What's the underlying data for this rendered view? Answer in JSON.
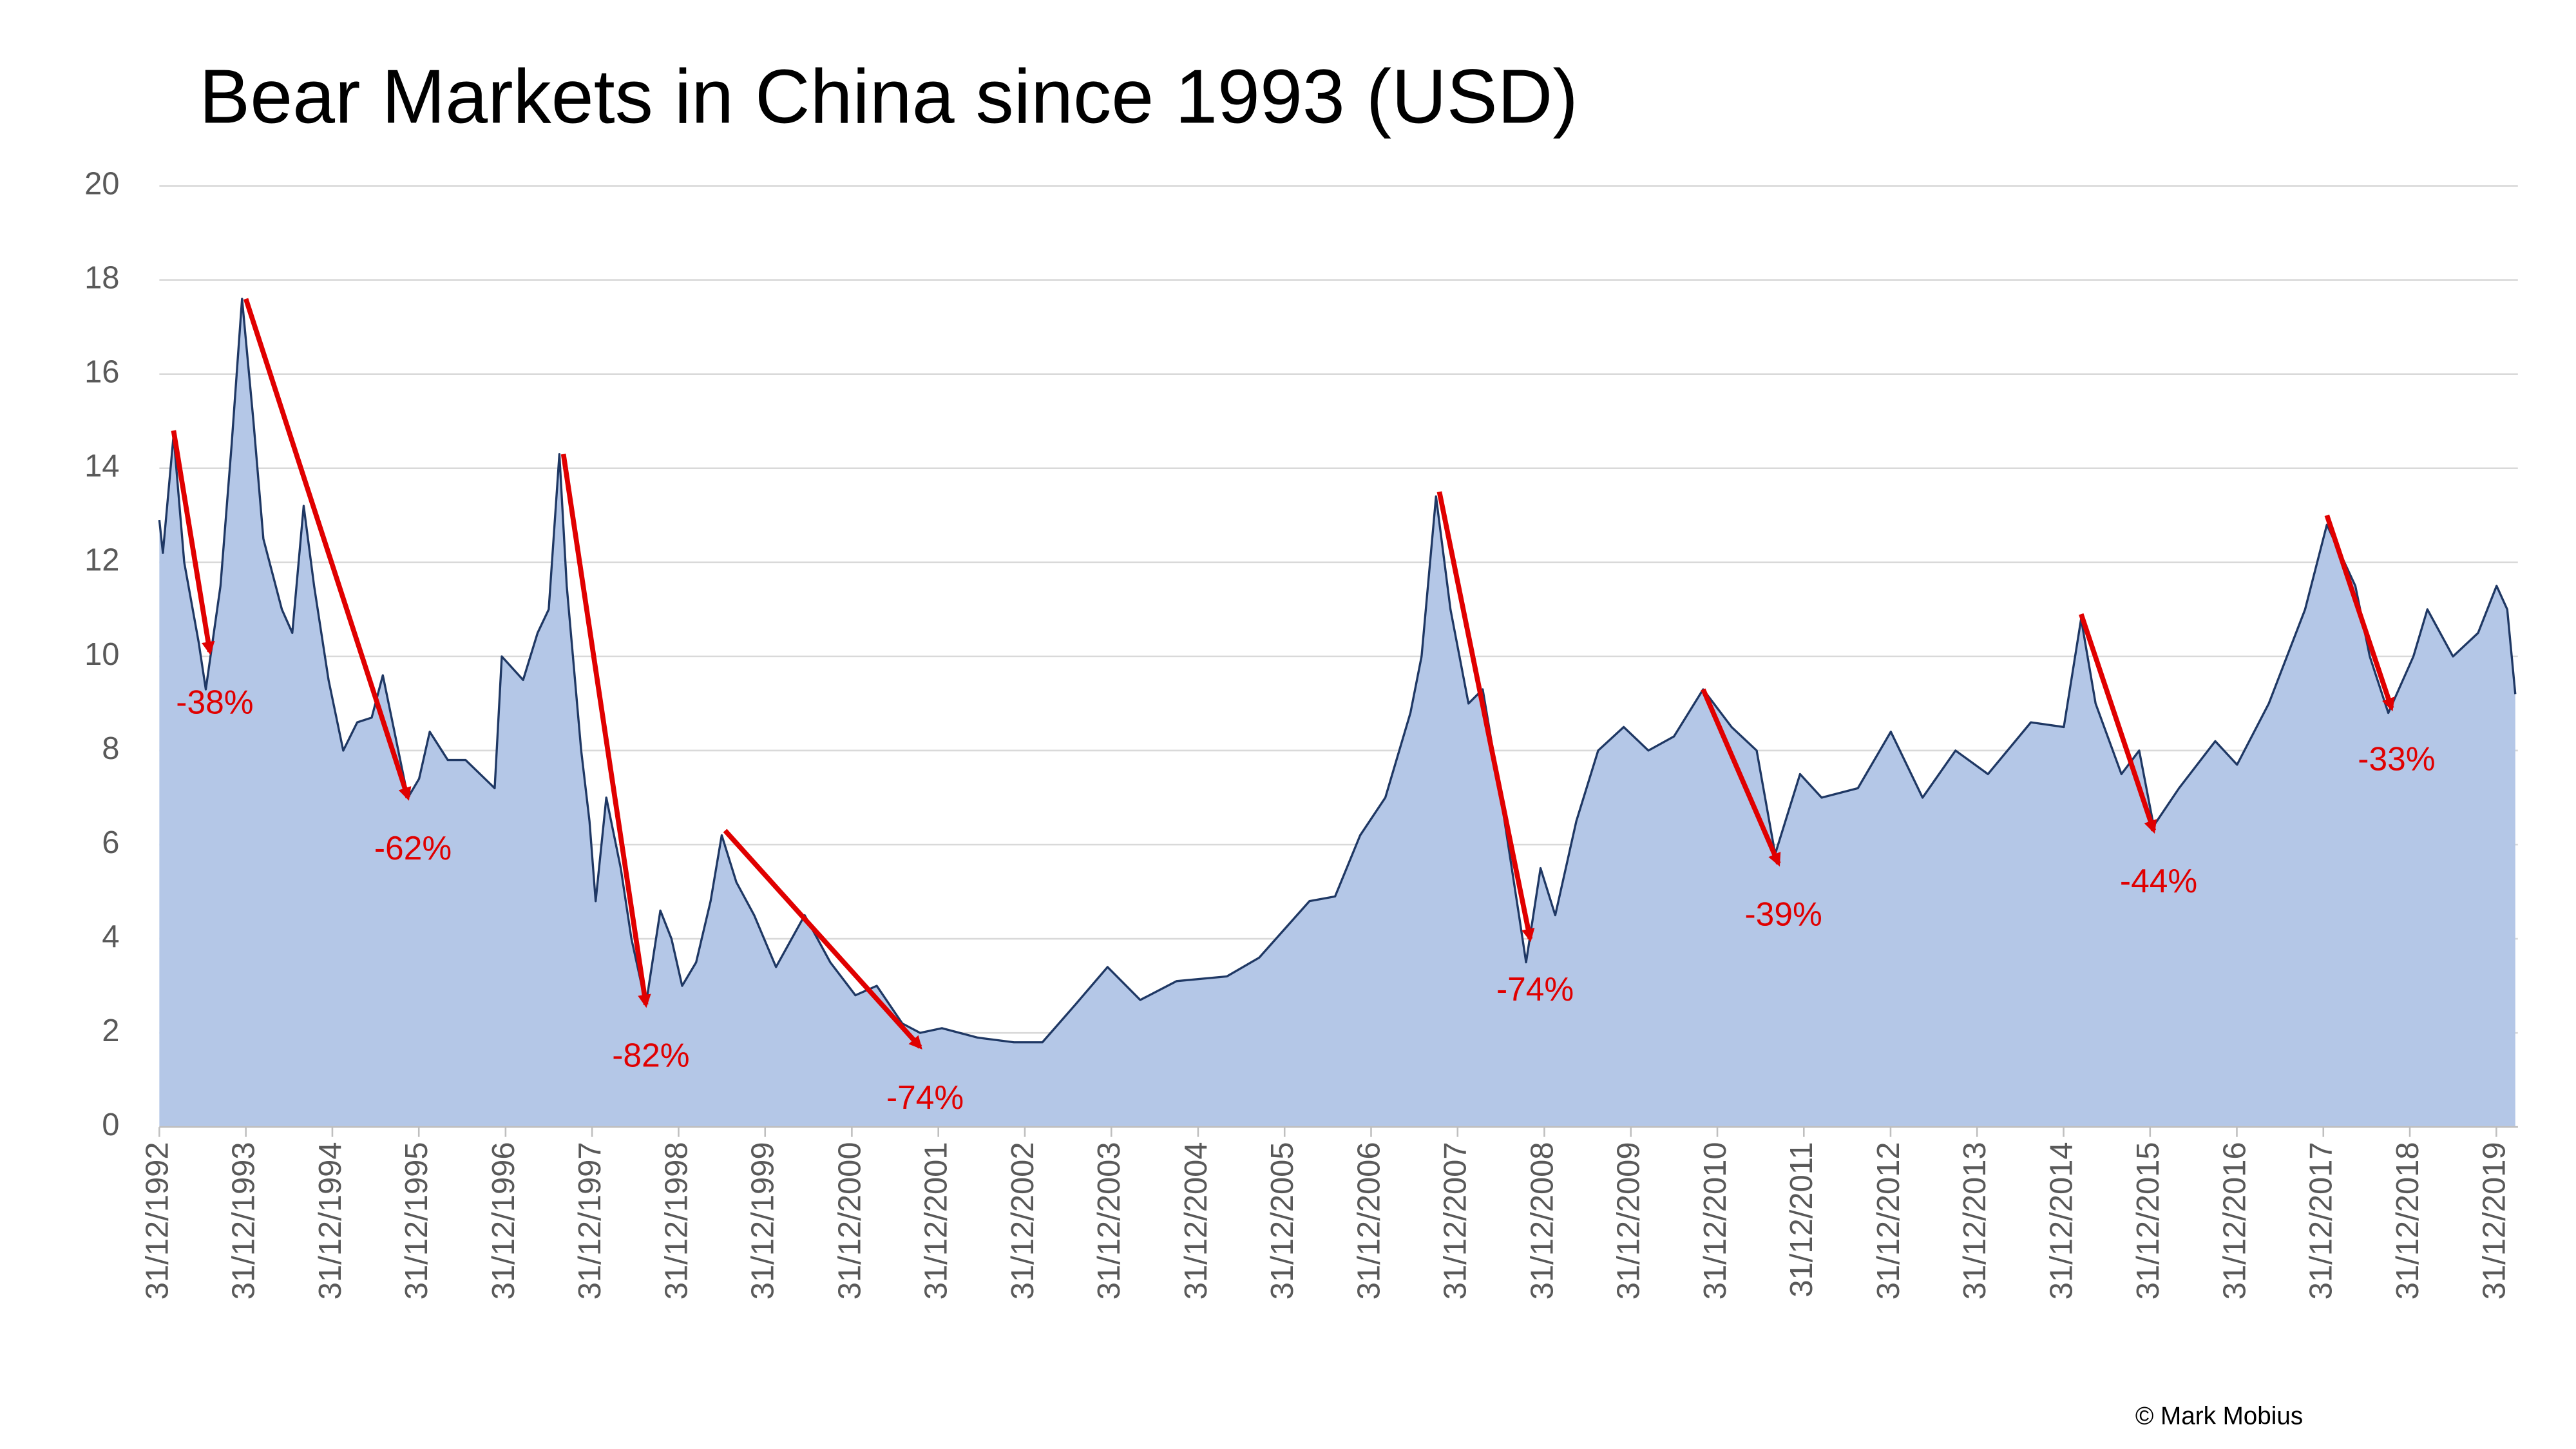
{
  "chart_data": {
    "type": "area",
    "title": "Bear Markets in China since 1993 (USD)",
    "credit": "© Mark Mobius",
    "xlim": [
      "1992-12-31",
      "2020-03-31"
    ],
    "xticks": [
      {
        "value": "1992-12-31",
        "label": "31/12/1992"
      },
      {
        "value": "1993-12-31",
        "label": "31/12/1993"
      },
      {
        "value": "1994-12-31",
        "label": "31/12/1994"
      },
      {
        "value": "1995-12-31",
        "label": "31/12/1995"
      },
      {
        "value": "1996-12-31",
        "label": "31/12/1996"
      },
      {
        "value": "1997-12-31",
        "label": "31/12/1997"
      },
      {
        "value": "1998-12-31",
        "label": "31/12/1998"
      },
      {
        "value": "1999-12-31",
        "label": "31/12/1999"
      },
      {
        "value": "2000-12-31",
        "label": "31/12/2000"
      },
      {
        "value": "2001-12-31",
        "label": "31/12/2001"
      },
      {
        "value": "2002-12-31",
        "label": "31/12/2002"
      },
      {
        "value": "2003-12-31",
        "label": "31/12/2003"
      },
      {
        "value": "2004-12-31",
        "label": "31/12/2004"
      },
      {
        "value": "2005-12-31",
        "label": "31/12/2005"
      },
      {
        "value": "2006-12-31",
        "label": "31/12/2006"
      },
      {
        "value": "2007-12-31",
        "label": "31/12/2007"
      },
      {
        "value": "2008-12-31",
        "label": "31/12/2008"
      },
      {
        "value": "2009-12-31",
        "label": "31/12/2009"
      },
      {
        "value": "2010-12-31",
        "label": "31/12/2010"
      },
      {
        "value": "2011-12-31",
        "label": "31/12/2011"
      },
      {
        "value": "2012-12-31",
        "label": "31/12/2012"
      },
      {
        "value": "2013-12-31",
        "label": "31/12/2013"
      },
      {
        "value": "2014-12-31",
        "label": "31/12/2014"
      },
      {
        "value": "2015-12-31",
        "label": "31/12/2015"
      },
      {
        "value": "2016-12-31",
        "label": "31/12/2016"
      },
      {
        "value": "2017-12-31",
        "label": "31/12/2017"
      },
      {
        "value": "2018-12-31",
        "label": "31/12/2018"
      },
      {
        "value": "2019-12-31",
        "label": "31/12/2019"
      }
    ],
    "ylim": [
      0,
      20
    ],
    "yticks": [
      0,
      2,
      4,
      6,
      8,
      10,
      12,
      14,
      16,
      18,
      20
    ],
    "grid": true,
    "x": [
      "1992-12-31",
      "1993-01-15",
      "1993-03-01",
      "1993-04-15",
      "1993-06-15",
      "1993-07-15",
      "1993-09-15",
      "1993-11-01",
      "1993-12-15",
      "1994-02-01",
      "1994-03-15",
      "1994-06-01",
      "1994-07-15",
      "1994-09-01",
      "1994-10-15",
      "1994-12-15",
      "1995-02-15",
      "1995-04-15",
      "1995-06-15",
      "1995-08-01",
      "1995-09-15",
      "1995-11-15",
      "1996-01-01",
      "1996-02-15",
      "1996-05-01",
      "1996-07-15",
      "1996-11-15",
      "1996-12-15",
      "1997-03-15",
      "1997-05-15",
      "1997-07-01",
      "1997-08-15",
      "1997-09-15",
      "1997-11-15",
      "1997-12-20",
      "1998-01-15",
      "1998-03-01",
      "1998-05-01",
      "1998-06-15",
      "1998-08-15",
      "1998-10-15",
      "1998-12-01",
      "1999-01-15",
      "1999-03-15",
      "1999-05-15",
      "1999-07-01",
      "1999-09-01",
      "1999-11-15",
      "2000-02-15",
      "2000-06-15",
      "2000-10-01",
      "2001-01-15",
      "2001-04-15",
      "2001-08-01",
      "2001-10-15",
      "2002-01-15",
      "2002-06-15",
      "2002-11-15",
      "2003-03-15",
      "2003-08-01",
      "2003-12-15",
      "2004-05-01",
      "2004-10-01",
      "2005-05-01",
      "2005-09-15",
      "2006-04-15",
      "2006-08-01",
      "2006-11-15",
      "2007-03-01",
      "2007-06-15",
      "2007-08-01",
      "2007-10-01",
      "2007-12-01",
      "2008-02-15",
      "2008-04-15",
      "2008-07-01",
      "2008-09-15",
      "2008-10-15",
      "2008-12-15",
      "2009-02-15",
      "2009-05-15",
      "2009-08-15",
      "2009-12-01",
      "2010-03-15",
      "2010-07-01",
      "2010-11-01",
      "2011-03-01",
      "2011-06-15",
      "2011-09-01",
      "2011-12-15",
      "2012-03-15",
      "2012-08-15",
      "2013-01-01",
      "2013-05-15",
      "2013-10-01",
      "2014-02-15",
      "2014-08-15",
      "2015-01-01",
      "2015-03-15",
      "2015-05-15",
      "2015-09-01",
      "2015-11-15",
      "2016-01-15",
      "2016-05-01",
      "2016-10-01",
      "2017-01-01",
      "2017-05-15",
      "2017-10-15",
      "2018-01-15",
      "2018-05-15",
      "2018-07-15",
      "2018-10-01",
      "2019-01-15",
      "2019-03-15",
      "2019-07-01",
      "2019-10-15",
      "2020-01-01",
      "2020-02-15",
      "2020-03-20"
    ],
    "series": [
      {
        "name": "China",
        "color": "#1f3864",
        "fill": "#b4c7e7",
        "values": [
          12.9,
          12.2,
          14.7,
          12,
          10.3,
          9.3,
          11.5,
          14.5,
          17.6,
          15,
          12.5,
          11,
          10.5,
          13.2,
          11.5,
          9.5,
          8,
          8.6,
          8.7,
          9.6,
          8.5,
          7,
          7.4,
          8.4,
          7.8,
          7.8,
          7.2,
          10,
          9.5,
          10.5,
          11,
          14.3,
          11.5,
          8,
          6.5,
          4.8,
          7,
          5.5,
          4,
          2.6,
          4.6,
          4,
          3,
          3.5,
          4.8,
          6.2,
          5.2,
          4.5,
          3.4,
          4.5,
          3.5,
          2.8,
          3,
          2.2,
          2,
          2.1,
          1.9,
          1.8,
          1.8,
          2.6,
          3.4,
          2.7,
          3.1,
          3.2,
          3.6,
          4.8,
          4.9,
          6.2,
          7,
          8.8,
          10,
          13.4,
          11,
          9,
          9.3,
          7,
          4.5,
          3.5,
          5.5,
          4.5,
          6.5,
          8,
          8.5,
          8,
          8.3,
          9.3,
          8.5,
          8,
          5.8,
          7.5,
          7,
          7.2,
          8.4,
          7,
          8,
          7.5,
          8.6,
          8.5,
          10.8,
          9,
          7.5,
          8,
          6.4,
          7.2,
          8.2,
          7.7,
          9,
          11,
          12.8,
          11.5,
          10,
          8.8,
          10,
          11,
          10,
          10.5,
          11.5,
          11,
          9.2
        ]
      }
    ],
    "annotations": [
      {
        "label": "-38%",
        "from": [
          "1993-03-01",
          14.8
        ],
        "to": [
          "1993-08-01",
          10.1
        ]
      },
      {
        "label": "-62%",
        "from": [
          "1993-12-31",
          17.6
        ],
        "to": [
          "1995-11-15",
          7.0
        ]
      },
      {
        "label": "-82%",
        "from": [
          "1997-09-01",
          14.3
        ],
        "to": [
          "1998-08-15",
          2.6
        ]
      },
      {
        "label": "-74%",
        "from": [
          "1999-07-15",
          6.3
        ],
        "to": [
          "2001-10-15",
          1.7
        ]
      },
      {
        "label": "-74%",
        "from": [
          "2007-10-15",
          13.5
        ],
        "to": [
          "2008-11-01",
          4.0
        ]
      },
      {
        "label": "-39%",
        "from": [
          "2010-11-01",
          9.3
        ],
        "to": [
          "2011-09-15",
          5.6
        ]
      },
      {
        "label": "-44%",
        "from": [
          "2015-03-15",
          10.9
        ],
        "to": [
          "2016-01-15",
          6.3
        ]
      },
      {
        "label": "-33%",
        "from": [
          "2018-01-15",
          13.0
        ],
        "to": [
          "2018-10-15",
          8.9
        ]
      }
    ]
  }
}
